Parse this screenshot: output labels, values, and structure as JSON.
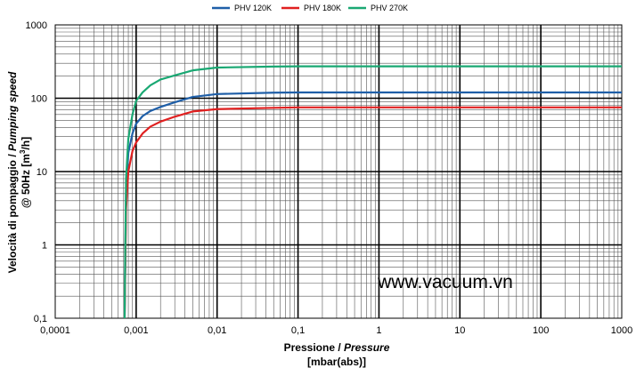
{
  "chart_data": {
    "type": "line",
    "xscale": "log",
    "yscale": "log",
    "xlim": [
      0.0001,
      1000
    ],
    "ylim": [
      0.1,
      1000
    ],
    "xticks": [
      "0,0001",
      "0,001",
      "0,01",
      "0,1",
      "1",
      "10",
      "100",
      "1000"
    ],
    "yticks": [
      "0,1",
      "1",
      "10",
      "100",
      "1000"
    ],
    "xlabel_main": "Pressione / ",
    "xlabel_italic": "Pressure",
    "xlabel_unit": "[mbar(abs)]",
    "ylabel_line1_main": "Velocità di pompaggio / ",
    "ylabel_line1_italic": "Pumping speed",
    "ylabel_line2_pre": "@ 50Hz [m",
    "ylabel_line2_sup": "3",
    "ylabel_line2_post": "/h]",
    "grid": true,
    "legend_position": "top-center",
    "watermark": "www.vacuum.vn",
    "series": [
      {
        "name": "PHV 120K",
        "color": "#1f5fa8",
        "x": [
          0.00072,
          0.00075,
          0.0008,
          0.0009,
          0.001,
          0.0012,
          0.0015,
          0.002,
          0.003,
          0.005,
          0.01,
          0.05,
          0.1,
          1,
          10,
          100,
          1000
        ],
        "y": [
          0.1,
          5,
          18,
          33,
          45,
          57,
          67,
          76,
          88,
          104,
          114,
          119,
          120,
          120,
          120,
          120,
          120
        ]
      },
      {
        "name": "PHV 180K",
        "color": "#e02020",
        "x": [
          0.00072,
          0.00075,
          0.0008,
          0.0009,
          0.001,
          0.0012,
          0.0015,
          0.002,
          0.003,
          0.005,
          0.01,
          0.05,
          0.1,
          1,
          10,
          100,
          1000
        ],
        "y": [
          0.1,
          3,
          10,
          19,
          25,
          33,
          41,
          48,
          56,
          66,
          71,
          74,
          75,
          75,
          75,
          75,
          75
        ]
      },
      {
        "name": "PHV 270K",
        "color": "#1aa873",
        "x": [
          0.00072,
          0.00075,
          0.0008,
          0.0009,
          0.001,
          0.0012,
          0.0015,
          0.002,
          0.003,
          0.005,
          0.01,
          0.05,
          0.1,
          1,
          10,
          100,
          1000
        ],
        "y": [
          0.1,
          8,
          28,
          60,
          92,
          120,
          150,
          180,
          205,
          240,
          262,
          270,
          272,
          272,
          272,
          272,
          272
        ]
      }
    ]
  }
}
